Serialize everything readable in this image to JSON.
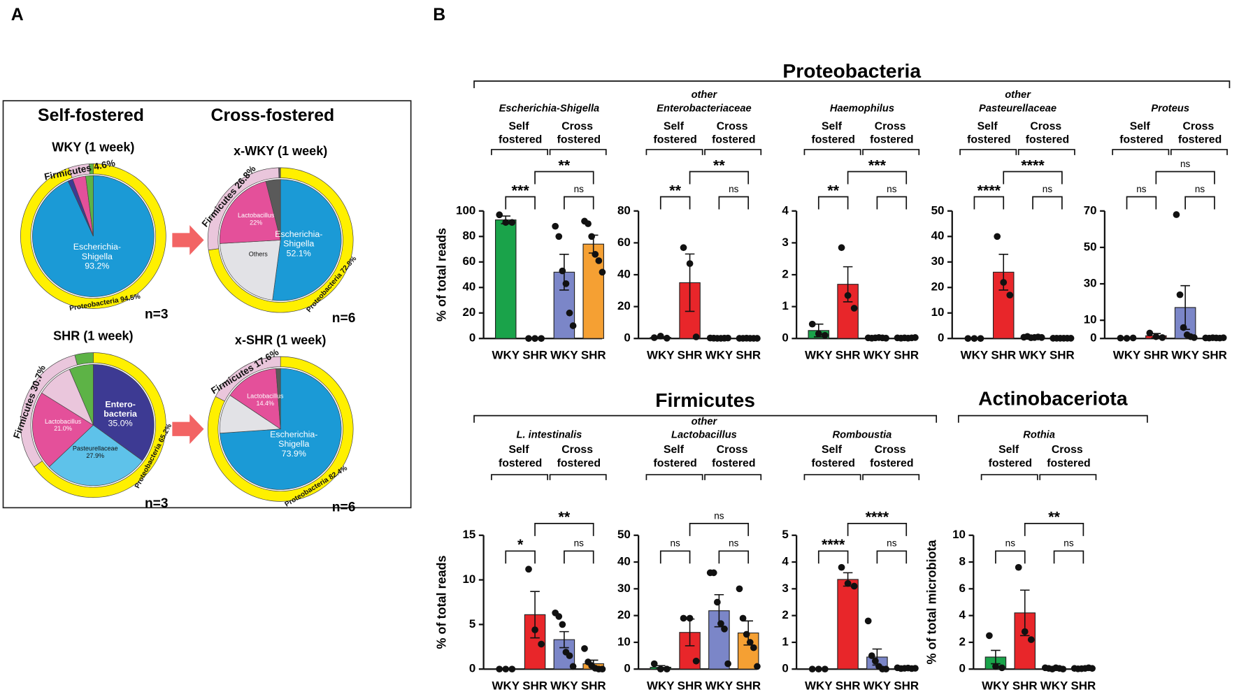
{
  "panel_labels": [
    "A",
    "B"
  ],
  "panel_a": {
    "headings": [
      "Self-fostered",
      "Cross-fostered"
    ]
  },
  "headers": [
    "Proteobacteria",
    "Firmicutes",
    "Actinobaceriota"
  ],
  "chart_data": [
    {
      "type": "pie",
      "title": "WKY (1 week)",
      "note": "n=3",
      "inner": {
        "categories": [
          "Escherichia-Shigella",
          null,
          null,
          null
        ],
        "values": [
          93.2,
          1.3,
          3.5,
          2.0
        ],
        "value_labels": [
          "93.2%",
          null,
          null,
          null
        ],
        "colors": [
          "#1b9ad6",
          "#3d3a93",
          "#e4509a",
          "#5db346"
        ]
      },
      "outer": {
        "categories": [
          "Proteobacteria",
          "Firmicutes",
          null
        ],
        "values": [
          94.5,
          4.6,
          0.9
        ],
        "value_labels": [
          "94.5%",
          "4.6%",
          null
        ],
        "colors": [
          "#fff000",
          "#eac6dc",
          "#5db346"
        ]
      }
    },
    {
      "type": "pie",
      "title": "x-WKY (1 week)",
      "note": "n=6",
      "inner": {
        "categories": [
          "Escherichia-Shigella",
          "Others",
          "Lactobacillus",
          null
        ],
        "values": [
          52.1,
          22.0,
          22.0,
          3.9
        ],
        "value_labels": [
          "52.1%",
          null,
          "22%",
          null
        ],
        "colors": [
          "#1b9ad6",
          "#e2e2e6",
          "#e4509a",
          "#5a5a5a"
        ]
      },
      "outer": {
        "categories": [
          "Proteobacteria",
          "Firmicutes",
          null
        ],
        "values": [
          72.8,
          26.8,
          0.4
        ],
        "value_labels": [
          "72.8%",
          "26.8%",
          null
        ],
        "colors": [
          "#fff000",
          "#eac6dc",
          "#5a5a5a"
        ]
      }
    },
    {
      "type": "pie",
      "title": "SHR (1 week)",
      "note": "n=3",
      "inner": {
        "categories": [
          "Entero-bacteria",
          "Pasteurellaceae",
          "Lactobacillus",
          null,
          null
        ],
        "values": [
          35.0,
          27.9,
          21.0,
          9.7,
          6.4
        ],
        "value_labels": [
          "35.0%",
          "27.9%",
          "21.0%",
          null,
          null
        ],
        "colors": [
          "#3d3a93",
          "#5ec2ea",
          "#e4509a",
          "#eac6dc",
          "#5db346"
        ]
      },
      "outer": {
        "categories": [
          "Proteobacteria",
          "Firmicutes",
          null
        ],
        "values": [
          65.2,
          30.7,
          4.1
        ],
        "value_labels": [
          "65.2%",
          "30.7%",
          null
        ],
        "colors": [
          "#fff000",
          "#eac6dc",
          "#5db346"
        ]
      }
    },
    {
      "type": "pie",
      "title": "x-SHR (1 week)",
      "note": "n=6",
      "inner": {
        "categories": [
          "Escherichia-Shigella",
          null,
          "Lactobacillus",
          null
        ],
        "values": [
          73.9,
          10.5,
          14.4,
          1.2
        ],
        "value_labels": [
          "73.9%",
          null,
          "14.4%",
          null
        ],
        "colors": [
          "#1b9ad6",
          "#e2e2e6",
          "#e4509a",
          "#5a5a5a"
        ]
      },
      "outer": {
        "categories": [
          "Proteobacteria",
          "Firmicutes"
        ],
        "values": [
          82.4,
          17.6
        ],
        "value_labels": [
          "82.4%",
          "17.6%"
        ],
        "colors": [
          "#fff000",
          "#eac6dc"
        ]
      }
    },
    {
      "type": "bar",
      "title": [
        "Escherichia-Shigella"
      ],
      "groups": [
        "Self fostered",
        "Cross fostered"
      ],
      "categories": [
        "WKY",
        "SHR",
        "WKY",
        "SHR"
      ],
      "values": [
        93,
        0.2,
        52,
        74
      ],
      "errors": [
        3,
        0,
        14,
        7
      ],
      "points": [
        [
          97,
          91,
          91
        ],
        [
          0,
          0,
          0
        ],
        [
          88,
          80,
          53,
          43,
          20,
          10
        ],
        [
          92,
          90,
          80,
          66,
          61,
          52
        ]
      ],
      "colors": [
        "#1aa34a",
        "#e8262a",
        "#7b86c8",
        "#f5a033"
      ],
      "ylim": [
        0,
        100
      ],
      "yticks": [
        0,
        20,
        40,
        60,
        80,
        100
      ],
      "ylabel": "% of total reads",
      "annotations": [
        {
          "pair": [
            0,
            1
          ],
          "text": "***"
        },
        {
          "pair": [
            1,
            3
          ],
          "text": "**"
        },
        {
          "pair": [
            2,
            3
          ],
          "text": "ns"
        }
      ]
    },
    {
      "type": "bar",
      "title": [
        "other",
        "Enterobacteriaceae"
      ],
      "groups": [
        "Self fostered",
        "Cross fostered"
      ],
      "categories": [
        "WKY",
        "SHR",
        "WKY",
        "SHR"
      ],
      "values": [
        0.7,
        35,
        0.2,
        0.1
      ],
      "errors": [
        0.4,
        18,
        0.1,
        0.05
      ],
      "points": [
        [
          0.5,
          1.5,
          0.2
        ],
        [
          57,
          47,
          1
        ],
        [
          0.3,
          0.2,
          0.1,
          0.1,
          0.2,
          0.3
        ],
        [
          0.1,
          0.1,
          0.2,
          0.1,
          0.1,
          0.1
        ]
      ],
      "colors": [
        "#1aa34a",
        "#e8262a",
        "#7b86c8",
        "#f5a033"
      ],
      "ylim": [
        0,
        80
      ],
      "yticks": [
        0,
        20,
        40,
        60,
        80
      ],
      "annotations": [
        {
          "pair": [
            0,
            1
          ],
          "text": "**"
        },
        {
          "pair": [
            1,
            3
          ],
          "text": "**"
        },
        {
          "pair": [
            2,
            3
          ],
          "text": "ns"
        }
      ]
    },
    {
      "type": "bar",
      "title": [
        "Haemophilus"
      ],
      "groups": [
        "Self fostered",
        "Cross fostered"
      ],
      "categories": [
        "WKY",
        "SHR",
        "WKY",
        "SHR"
      ],
      "values": [
        0.25,
        1.7,
        0.02,
        0.02
      ],
      "errors": [
        0.2,
        0.55,
        0.01,
        0.01
      ],
      "points": [
        [
          0.45,
          0.15,
          0.1
        ],
        [
          2.85,
          1.35,
          0.95
        ],
        [
          0.02,
          0.01,
          0.02,
          0.03,
          0.02,
          0.01
        ],
        [
          0.02,
          0.01,
          0.02,
          0.01,
          0.02,
          0.03
        ]
      ],
      "colors": [
        "#1aa34a",
        "#e8262a",
        "#7b86c8",
        "#f5a033"
      ],
      "ylim": [
        0,
        4
      ],
      "yticks": [
        0,
        1,
        2,
        3,
        4
      ],
      "annotations": [
        {
          "pair": [
            0,
            1
          ],
          "text": "**"
        },
        {
          "pair": [
            1,
            3
          ],
          "text": "***"
        },
        {
          "pair": [
            2,
            3
          ],
          "text": "ns"
        }
      ]
    },
    {
      "type": "bar",
      "title": [
        "other",
        "Pasteurellaceae"
      ],
      "groups": [
        "Self fostered",
        "Cross fostered"
      ],
      "categories": [
        "WKY",
        "SHR",
        "WKY",
        "SHR"
      ],
      "values": [
        0.1,
        26,
        0.5,
        0.1
      ],
      "errors": [
        0.05,
        7,
        0.2,
        0.05
      ],
      "points": [
        [
          0,
          0,
          0
        ],
        [
          40,
          22,
          17
        ],
        [
          0.5,
          0.8,
          0.3,
          0.4,
          0.6,
          0.4
        ],
        [
          0.1,
          0.1,
          0.1,
          0.1,
          0.1,
          0.1
        ]
      ],
      "colors": [
        "#1aa34a",
        "#e8262a",
        "#7b86c8",
        "#f5a033"
      ],
      "ylim": [
        0,
        50
      ],
      "yticks": [
        0,
        10,
        20,
        30,
        40,
        50
      ],
      "annotations": [
        {
          "pair": [
            0,
            1
          ],
          "text": "****"
        },
        {
          "pair": [
            1,
            3
          ],
          "text": "****"
        },
        {
          "pair": [
            2,
            3
          ],
          "text": "ns"
        }
      ]
    },
    {
      "type": "bar",
      "title": [
        "Proteus"
      ],
      "groups": [
        "Self fostered",
        "Cross fostered"
      ],
      "categories": [
        "WKY",
        "SHR",
        "WKY",
        "SHR"
      ],
      "values": [
        0.2,
        1.5,
        17,
        0.3
      ],
      "errors": [
        0.1,
        1.2,
        12,
        0.2
      ],
      "points": [
        [
          0.2,
          0.1,
          0.3
        ],
        [
          3,
          1,
          0.5
        ],
        [
          68,
          24,
          6,
          2,
          1,
          0.5
        ],
        [
          0.3,
          0.2,
          0.4,
          0.3,
          0.2,
          0.4
        ]
      ],
      "colors": [
        "#1aa34a",
        "#e8262a",
        "#7b86c8",
        "#f5a033"
      ],
      "ylim": [
        0,
        70
      ],
      "yticks": [
        0,
        10,
        30,
        50,
        70
      ],
      "annotations": [
        {
          "pair": [
            0,
            1
          ],
          "text": "ns"
        },
        {
          "pair": [
            1,
            3
          ],
          "text": "ns"
        },
        {
          "pair": [
            2,
            3
          ],
          "text": "ns"
        }
      ]
    },
    {
      "type": "bar",
      "title": [
        "L. intestinalis"
      ],
      "groups": [
        "Self fostered",
        "Cross fostered"
      ],
      "categories": [
        "WKY",
        "SHR",
        "WKY",
        "SHR"
      ],
      "values": [
        0.05,
        6.1,
        3.3,
        0.6
      ],
      "errors": [
        0.02,
        2.6,
        0.9,
        0.4
      ],
      "points": [
        [
          0,
          0,
          0
        ],
        [
          11.2,
          4.4,
          2.8
        ],
        [
          6.3,
          5.9,
          5,
          1.9,
          1.5,
          0.3
        ],
        [
          2.3,
          0.8,
          0.4,
          0.1,
          0,
          0
        ]
      ],
      "colors": [
        "#1aa34a",
        "#e8262a",
        "#7b86c8",
        "#f5a033"
      ],
      "ylim": [
        0,
        15
      ],
      "yticks": [
        0,
        5,
        10,
        15
      ],
      "ylabel": "% of total reads",
      "annotations": [
        {
          "pair": [
            0,
            1
          ],
          "text": "*"
        },
        {
          "pair": [
            1,
            3
          ],
          "text": "**"
        },
        {
          "pair": [
            2,
            3
          ],
          "text": "ns"
        }
      ]
    },
    {
      "type": "bar",
      "title": [
        "other",
        "Lactobacillus"
      ],
      "groups": [
        "Self fostered",
        "Cross fostered"
      ],
      "categories": [
        "WKY",
        "SHR",
        "WKY",
        "SHR"
      ],
      "values": [
        0.7,
        13.7,
        21.8,
        13.5
      ],
      "errors": [
        0.6,
        5,
        6,
        4.5
      ],
      "points": [
        [
          2,
          0,
          0
        ],
        [
          19,
          19,
          3
        ],
        [
          36,
          36,
          25,
          17,
          15,
          2
        ],
        [
          30,
          19,
          13,
          10,
          8,
          1
        ]
      ],
      "colors": [
        "#1aa34a",
        "#e8262a",
        "#7b86c8",
        "#f5a033"
      ],
      "ylim": [
        0,
        50
      ],
      "yticks": [
        0,
        10,
        20,
        30,
        40,
        50
      ],
      "annotations": [
        {
          "pair": [
            0,
            1
          ],
          "text": "ns"
        },
        {
          "pair": [
            1,
            3
          ],
          "text": "ns"
        },
        {
          "pair": [
            2,
            3
          ],
          "text": "ns"
        }
      ]
    },
    {
      "type": "bar",
      "title": [
        "Romboustia"
      ],
      "groups": [
        "Self fostered",
        "Cross fostered"
      ],
      "categories": [
        "WKY",
        "SHR",
        "WKY",
        "SHR"
      ],
      "values": [
        0.01,
        3.35,
        0.45,
        0.03
      ],
      "errors": [
        0.01,
        0.25,
        0.3,
        0.02
      ],
      "points": [
        [
          0,
          0,
          0
        ],
        [
          3.8,
          3.2,
          3.1
        ],
        [
          1.8,
          0.5,
          0.3,
          0.1,
          0,
          0
        ],
        [
          0.05,
          0.02,
          0.03,
          0.04,
          0.02,
          0.03
        ]
      ],
      "colors": [
        "#1aa34a",
        "#e8262a",
        "#7b86c8",
        "#f5a033"
      ],
      "ylim": [
        0,
        5
      ],
      "yticks": [
        0,
        1,
        2,
        3,
        4,
        5
      ],
      "annotations": [
        {
          "pair": [
            0,
            1
          ],
          "text": "****"
        },
        {
          "pair": [
            1,
            3
          ],
          "text": "****"
        },
        {
          "pair": [
            2,
            3
          ],
          "text": "ns"
        }
      ]
    },
    {
      "type": "bar",
      "title": [
        "Rothia"
      ],
      "groups": [
        "Self fostered",
        "Cross fostered"
      ],
      "categories": [
        "WKY",
        "SHR",
        "WKY",
        "SHR"
      ],
      "values": [
        0.9,
        4.2,
        0.05,
        0.05
      ],
      "errors": [
        0.5,
        1.7,
        0.03,
        0.02
      ],
      "points": [
        [
          2.5,
          0.2,
          0.1
        ],
        [
          7.6,
          2.8,
          2.2
        ],
        [
          0.1,
          0.05,
          0,
          0.1,
          0.05,
          0
        ],
        [
          0.05,
          0.02,
          0.03,
          0.05,
          0.1,
          0.05
        ]
      ],
      "colors": [
        "#1aa34a",
        "#e8262a",
        "#7b86c8",
        "#f5a033"
      ],
      "ylim": [
        0,
        10
      ],
      "yticks": [
        0,
        2,
        4,
        6,
        8,
        10
      ],
      "ylabel": "% of total microbiota",
      "annotations": [
        {
          "pair": [
            0,
            1
          ],
          "text": "ns"
        },
        {
          "pair": [
            1,
            3
          ],
          "text": "**"
        },
        {
          "pair": [
            2,
            3
          ],
          "text": "ns"
        }
      ]
    }
  ]
}
